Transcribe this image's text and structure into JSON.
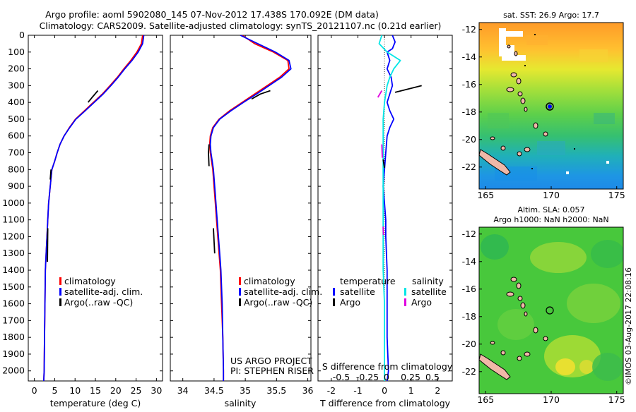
{
  "header": {
    "line1": "Argo profile: aoml 5902080_145 07-Nov-2012 17.438S 170.092E (DM data)",
    "line2": "Climatology: CARS2009. Satellite-adjusted climatology: synTS_20121107.nc (0.21d earlier)"
  },
  "colors": {
    "climatology": "#ff0000",
    "satellite": "#0000ff",
    "argo": "#000000",
    "sal_satellite": "#00e6e6",
    "sal_argo": "#e000e0",
    "land": "#f0b8a8"
  },
  "chart_data": [
    {
      "type": "line",
      "id": "temperature-profile",
      "xlabel": "temperature (deg C)",
      "ylabel": "",
      "xlim": [
        -1.5,
        31.5
      ],
      "ylim": [
        2060,
        0
      ],
      "xticks": [
        0,
        5,
        10,
        15,
        20,
        25,
        30
      ],
      "yticks": [
        0,
        100,
        200,
        300,
        400,
        500,
        600,
        700,
        800,
        900,
        1000,
        1100,
        1200,
        1300,
        1400,
        1500,
        1600,
        1700,
        1800,
        1900,
        2000
      ],
      "legend": [
        "climatology",
        "satellite-adj. clim.",
        "Argo(..raw -QC)"
      ],
      "series": [
        {
          "name": "climatology",
          "color": "#ff0000",
          "x": [
            26.6,
            26.3,
            25.2,
            23.7,
            22.0,
            20.4,
            18.6,
            16.7,
            14.5,
            12.3,
            10.1,
            8.6,
            7.3,
            6.3,
            5.6,
            5.0,
            4.3,
            3.9,
            3.5,
            3.3,
            3.1,
            2.9,
            2.7,
            2.6,
            2.5,
            2.4,
            2.3
          ],
          "y": [
            0,
            50,
            100,
            150,
            200,
            250,
            300,
            350,
            400,
            450,
            500,
            550,
            600,
            650,
            700,
            750,
            800,
            900,
            1000,
            1100,
            1200,
            1300,
            1400,
            1600,
            1800,
            2000,
            2060
          ]
        },
        {
          "name": "satellite-adj. clim.",
          "color": "#0000ff",
          "x": [
            26.9,
            26.6,
            25.5,
            24.0,
            22.2,
            20.6,
            18.8,
            16.9,
            14.7,
            12.5,
            10.2,
            8.7,
            7.3,
            6.3,
            5.6,
            5.0,
            4.3,
            3.9,
            3.5,
            3.3,
            3.1,
            2.9,
            2.7,
            2.6,
            2.5,
            2.4,
            2.3
          ],
          "y": [
            0,
            50,
            100,
            150,
            200,
            250,
            300,
            350,
            400,
            450,
            500,
            550,
            600,
            650,
            700,
            750,
            800,
            900,
            1000,
            1100,
            1200,
            1300,
            1400,
            1600,
            1800,
            2000,
            2060
          ]
        },
        {
          "name": "Argo(..raw -QC)",
          "color": "#000000",
          "x": [
            15.6,
            14.2,
            13.2
          ],
          "y": [
            330,
            370,
            400
          ]
        },
        {
          "name": "Argo(..raw -QC)",
          "color": "#000000",
          "x": [
            4.1,
            3.9
          ],
          "y": [
            800,
            860
          ]
        },
        {
          "name": "Argo(..raw -QC)",
          "color": "#000000",
          "x": [
            3.3,
            3.2
          ],
          "y": [
            1150,
            1350
          ]
        }
      ]
    },
    {
      "type": "line",
      "id": "salinity-profile",
      "xlabel": "salinity",
      "ylabel": "",
      "xlim": [
        33.8,
        36.05
      ],
      "ylim": [
        2060,
        0
      ],
      "xticks": [
        34,
        34.5,
        35,
        35.5,
        36
      ],
      "yticks": [
        0,
        100,
        200,
        300,
        400,
        500,
        600,
        700,
        800,
        900,
        1000,
        1100,
        1200,
        1300,
        1400,
        1500,
        1600,
        1700,
        1800,
        1900,
        2000
      ],
      "legend": [
        "climatology",
        "satellite-adj. clim.",
        "Argo(..raw -QC)"
      ],
      "series": [
        {
          "name": "climatology",
          "color": "#ff0000",
          "x": [
            34.95,
            35.15,
            35.45,
            35.68,
            35.7,
            35.55,
            35.35,
            35.15,
            34.95,
            34.75,
            34.58,
            34.48,
            34.44,
            34.43,
            34.44,
            34.46,
            34.48,
            34.5,
            34.52,
            34.54,
            34.56,
            34.58,
            34.6,
            34.62,
            34.64,
            34.65,
            34.65
          ],
          "y": [
            0,
            50,
            100,
            150,
            200,
            250,
            300,
            350,
            400,
            450,
            500,
            550,
            600,
            650,
            700,
            750,
            800,
            900,
            1000,
            1100,
            1200,
            1300,
            1400,
            1600,
            1800,
            2000,
            2060
          ]
        },
        {
          "name": "satellite-adj. clim.",
          "color": "#0000ff",
          "x": [
            34.92,
            35.2,
            35.48,
            35.7,
            35.73,
            35.58,
            35.38,
            35.18,
            34.97,
            34.77,
            34.59,
            34.49,
            34.45,
            34.44,
            34.45,
            34.47,
            34.49,
            34.51,
            34.53,
            34.55,
            34.57,
            34.59,
            34.61,
            34.63,
            34.64,
            34.65,
            34.65
          ],
          "y": [
            0,
            50,
            100,
            150,
            200,
            250,
            300,
            350,
            400,
            450,
            500,
            550,
            600,
            650,
            700,
            750,
            800,
            900,
            1000,
            1100,
            1200,
            1300,
            1400,
            1600,
            1800,
            2000,
            2060
          ]
        },
        {
          "name": "Argo(..raw -QC)",
          "color": "#000000",
          "x": [
            35.4,
            35.24,
            35.1
          ],
          "y": [
            330,
            350,
            380
          ]
        },
        {
          "name": "Argo(..raw -QC)",
          "color": "#000000",
          "x": [
            34.42,
            34.41,
            34.42
          ],
          "y": [
            650,
            700,
            780
          ]
        },
        {
          "name": "Argo(..raw -QC)",
          "color": "#000000",
          "x": [
            34.49,
            34.51
          ],
          "y": [
            1150,
            1300
          ]
        }
      ]
    },
    {
      "type": "line",
      "id": "difference-profile",
      "xlabel": "T difference from climatology",
      "ylabel": "",
      "xlim": [
        -2.5,
        2.55
      ],
      "ylim": [
        2060,
        0
      ],
      "xticks": [
        -2,
        -1,
        0,
        1,
        2
      ],
      "top_axis_label": "S difference from climatology",
      "top_ticks": [
        "-0.5",
        "-0.25",
        "0",
        "0.25",
        "0.5"
      ],
      "yticks": [
        0,
        100,
        200,
        300,
        400,
        500,
        600,
        700,
        800,
        900,
        1000,
        1100,
        1200,
        1300,
        1400,
        1500,
        1600,
        1700,
        1800,
        1900,
        2000
      ],
      "legend_headers": [
        "temperature",
        "salinity"
      ],
      "legend": [
        "satellite",
        "Argo",
        "satellite",
        "Argo"
      ],
      "series": [
        {
          "name": "satellite",
          "color": "#0000ff",
          "x": [
            0.3,
            0.4,
            0.3,
            0.1,
            0.2,
            0.1,
            0.25,
            0.3,
            0.1,
            0.2,
            0.35,
            0.2,
            0.1,
            0.05,
            0.0,
            -0.05,
            0.0,
            0.05,
            0.05,
            0.1,
            0.1,
            0.1,
            0.15,
            0.1
          ],
          "y": [
            0,
            40,
            80,
            100,
            150,
            200,
            250,
            300,
            400,
            450,
            500,
            550,
            600,
            700,
            800,
            900,
            1000,
            1100,
            1200,
            1400,
            1600,
            1800,
            2000,
            2060
          ]
        },
        {
          "name": "satellite",
          "color": "#00e6e6",
          "x": [
            -0.1,
            -0.2,
            0.1,
            0.6,
            0.35,
            0.2,
            0.1,
            0.0,
            -0.05,
            -0.05,
            -0.05,
            -0.05,
            -0.05,
            -0.05,
            -0.05,
            -0.05,
            -0.05,
            0.0,
            0.0,
            0.0,
            0.0
          ],
          "y": [
            0,
            50,
            100,
            150,
            200,
            250,
            300,
            400,
            500,
            600,
            700,
            800,
            900,
            1000,
            1100,
            1200,
            1400,
            1600,
            1800,
            2000,
            2060
          ]
        },
        {
          "name": "Argo",
          "color": "#000000",
          "x": [
            0.4,
            0.9,
            1.4
          ],
          "y": [
            340,
            320,
            300
          ]
        },
        {
          "name": "Argo",
          "color": "#e000e0",
          "x": [
            -0.25,
            -0.1
          ],
          "y": [
            370,
            330
          ]
        },
        {
          "name": "Argo",
          "color": "#e000e0",
          "x": [
            -0.1,
            -0.08
          ],
          "y": [
            650,
            730
          ]
        },
        {
          "name": "Argo",
          "color": "#000000",
          "x": [
            -0.05,
            0.0
          ],
          "y": [
            740,
            790
          ]
        },
        {
          "name": "Argo",
          "color": "#e000e0",
          "x": [
            -0.05,
            -0.04
          ],
          "y": [
            1140,
            1190
          ]
        }
      ]
    },
    {
      "type": "heatmap",
      "id": "sst-map",
      "title": "sat. SST: 26.9  Argo: 17.7",
      "xticks": [
        "165",
        "170",
        "175"
      ],
      "yticks": [
        "-12",
        "-14",
        "-16",
        "-18",
        "-20",
        "-22"
      ]
    },
    {
      "type": "heatmap",
      "id": "sla-map",
      "title_line1": "Altim. SLA: 0.057",
      "title_line2": "Argo h1000: NaN  h2000: NaN",
      "xticks": [
        "165",
        "170",
        "175"
      ],
      "yticks": [
        "-12",
        "-14",
        "-16",
        "-18",
        "-20",
        "-22"
      ]
    }
  ],
  "annotations": {
    "project_line1": "US ARGO PROJECT",
    "project_line2": "PI: STEPHEN RISER",
    "copyright": "©IMOS 03-Aug-2017 22:08:16"
  }
}
